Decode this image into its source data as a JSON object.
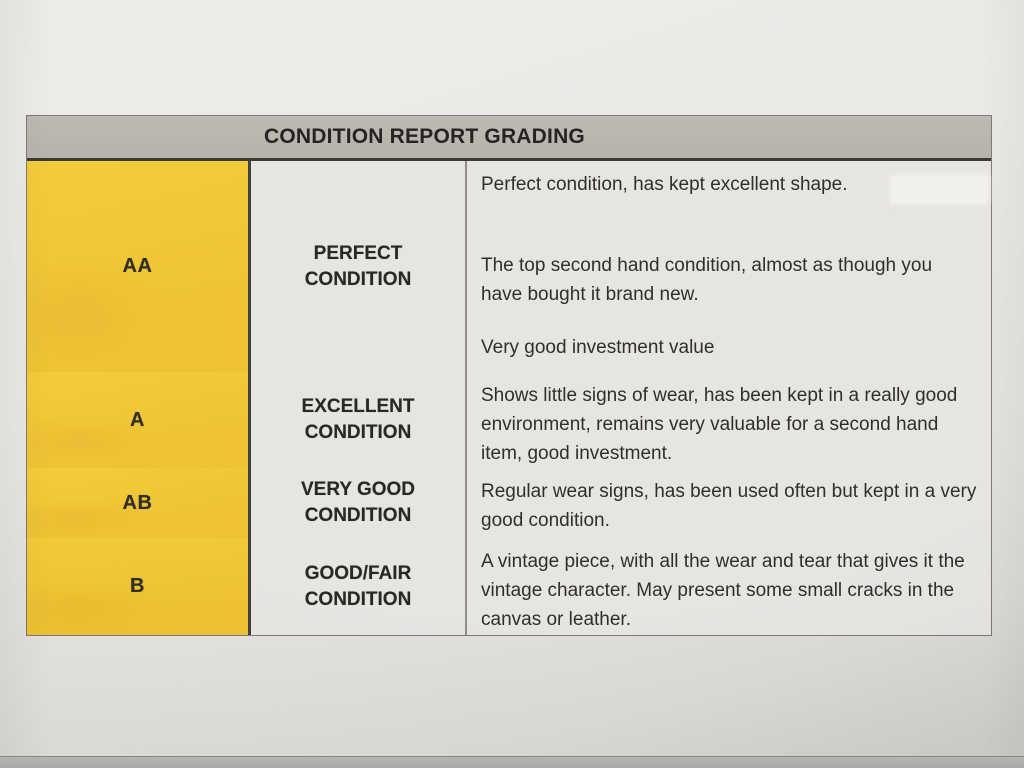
{
  "colors": {
    "paper": "#e9e7e4",
    "header-gray": "#b3afa8",
    "grade-yellow": "#f3c931",
    "cell-bg": "#e6e4e1",
    "ink": "#24221f"
  },
  "table": {
    "title": "CONDITION REPORT GRADING",
    "rows": [
      {
        "grade": "AA",
        "condition": "PERFECT CONDITION",
        "paragraphs": [
          "Perfect condition, has kept excellent shape.",
          "The top second hand condition, almost as though you have bought it brand new.",
          "Very good investment value"
        ]
      },
      {
        "grade": "A",
        "condition": "EXCELLENT CONDITION",
        "paragraphs": [
          "Shows little signs of wear, has been kept in a really good environment, remains very valuable for a second hand item, good investment."
        ]
      },
      {
        "grade": "AB",
        "condition": "VERY GOOD CONDITION",
        "paragraphs": [
          "Regular wear signs, has been used often but kept in a very good condition."
        ]
      },
      {
        "grade": "B",
        "condition": "GOOD/FAIR CONDITION",
        "paragraphs": [
          "A vintage piece, with all the wear and tear that gives it the vintage character. May present some small cracks in the canvas or leather."
        ]
      }
    ]
  }
}
